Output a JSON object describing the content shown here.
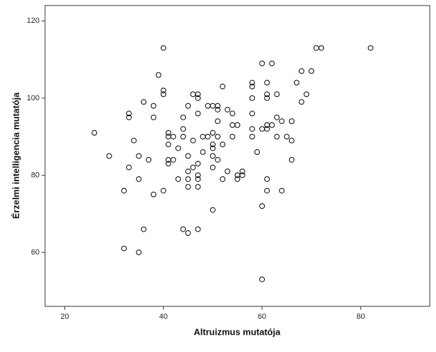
{
  "chart_data": {
    "type": "scatter",
    "x_label": "Altruizmus mutatója",
    "y_label": "Érzelmi intelligencia mutatója",
    "marker_color": "#000000",
    "xlim": [
      16,
      94
    ],
    "xticks": [
      20,
      40,
      60,
      80
    ],
    "ylim": [
      46,
      124
    ],
    "yticks": [
      60,
      80,
      100,
      120
    ],
    "grid": false,
    "x": [
      26,
      29,
      32,
      32,
      33,
      33,
      33,
      34,
      35,
      35,
      35,
      36,
      36,
      37,
      38,
      38,
      38,
      39,
      40,
      40,
      40,
      40,
      41,
      41,
      41,
      41,
      41,
      42,
      42,
      43,
      43,
      44,
      44,
      44,
      44,
      45,
      45,
      45,
      45,
      45,
      45,
      46,
      46,
      46,
      47,
      47,
      47,
      47,
      47,
      47,
      47,
      47,
      48,
      48,
      49,
      49,
      50,
      50,
      50,
      50,
      50,
      50,
      50,
      51,
      51,
      51,
      51,
      51,
      52,
      52,
      52,
      53,
      53,
      54,
      54,
      54,
      55,
      55,
      55,
      56,
      56,
      58,
      58,
      58,
      58,
      58,
      58,
      59,
      60,
      60,
      60,
      60,
      61,
      61,
      61,
      61,
      61,
      61,
      61,
      62,
      62,
      63,
      63,
      63,
      64,
      64,
      65,
      66,
      66,
      66,
      67,
      68,
      68,
      69,
      70,
      71,
      72,
      82
    ],
    "values": [
      91,
      85,
      76,
      61,
      82,
      96,
      95,
      89,
      85,
      79,
      60,
      99,
      66,
      84,
      98,
      95,
      75,
      106,
      113,
      102,
      101,
      76,
      91,
      90,
      88,
      84,
      83,
      90,
      84,
      87,
      79,
      95,
      92,
      90,
      66,
      98,
      85,
      81,
      79,
      77,
      65,
      101,
      89,
      82,
      101,
      100,
      96,
      83,
      80,
      79,
      77,
      66,
      90,
      86,
      90,
      98,
      98,
      91,
      88,
      87,
      85,
      82,
      71,
      98,
      97,
      94,
      90,
      84,
      103,
      88,
      79,
      97,
      81,
      96,
      93,
      90,
      93,
      80,
      79,
      81,
      80,
      104,
      103,
      100,
      96,
      92,
      90,
      86,
      109,
      92,
      72,
      53,
      104,
      101,
      100,
      93,
      92,
      79,
      76,
      109,
      93,
      101,
      95,
      90,
      94,
      76,
      90,
      94,
      89,
      84,
      104,
      107,
      99,
      101,
      107,
      113,
      113,
      113
    ]
  }
}
